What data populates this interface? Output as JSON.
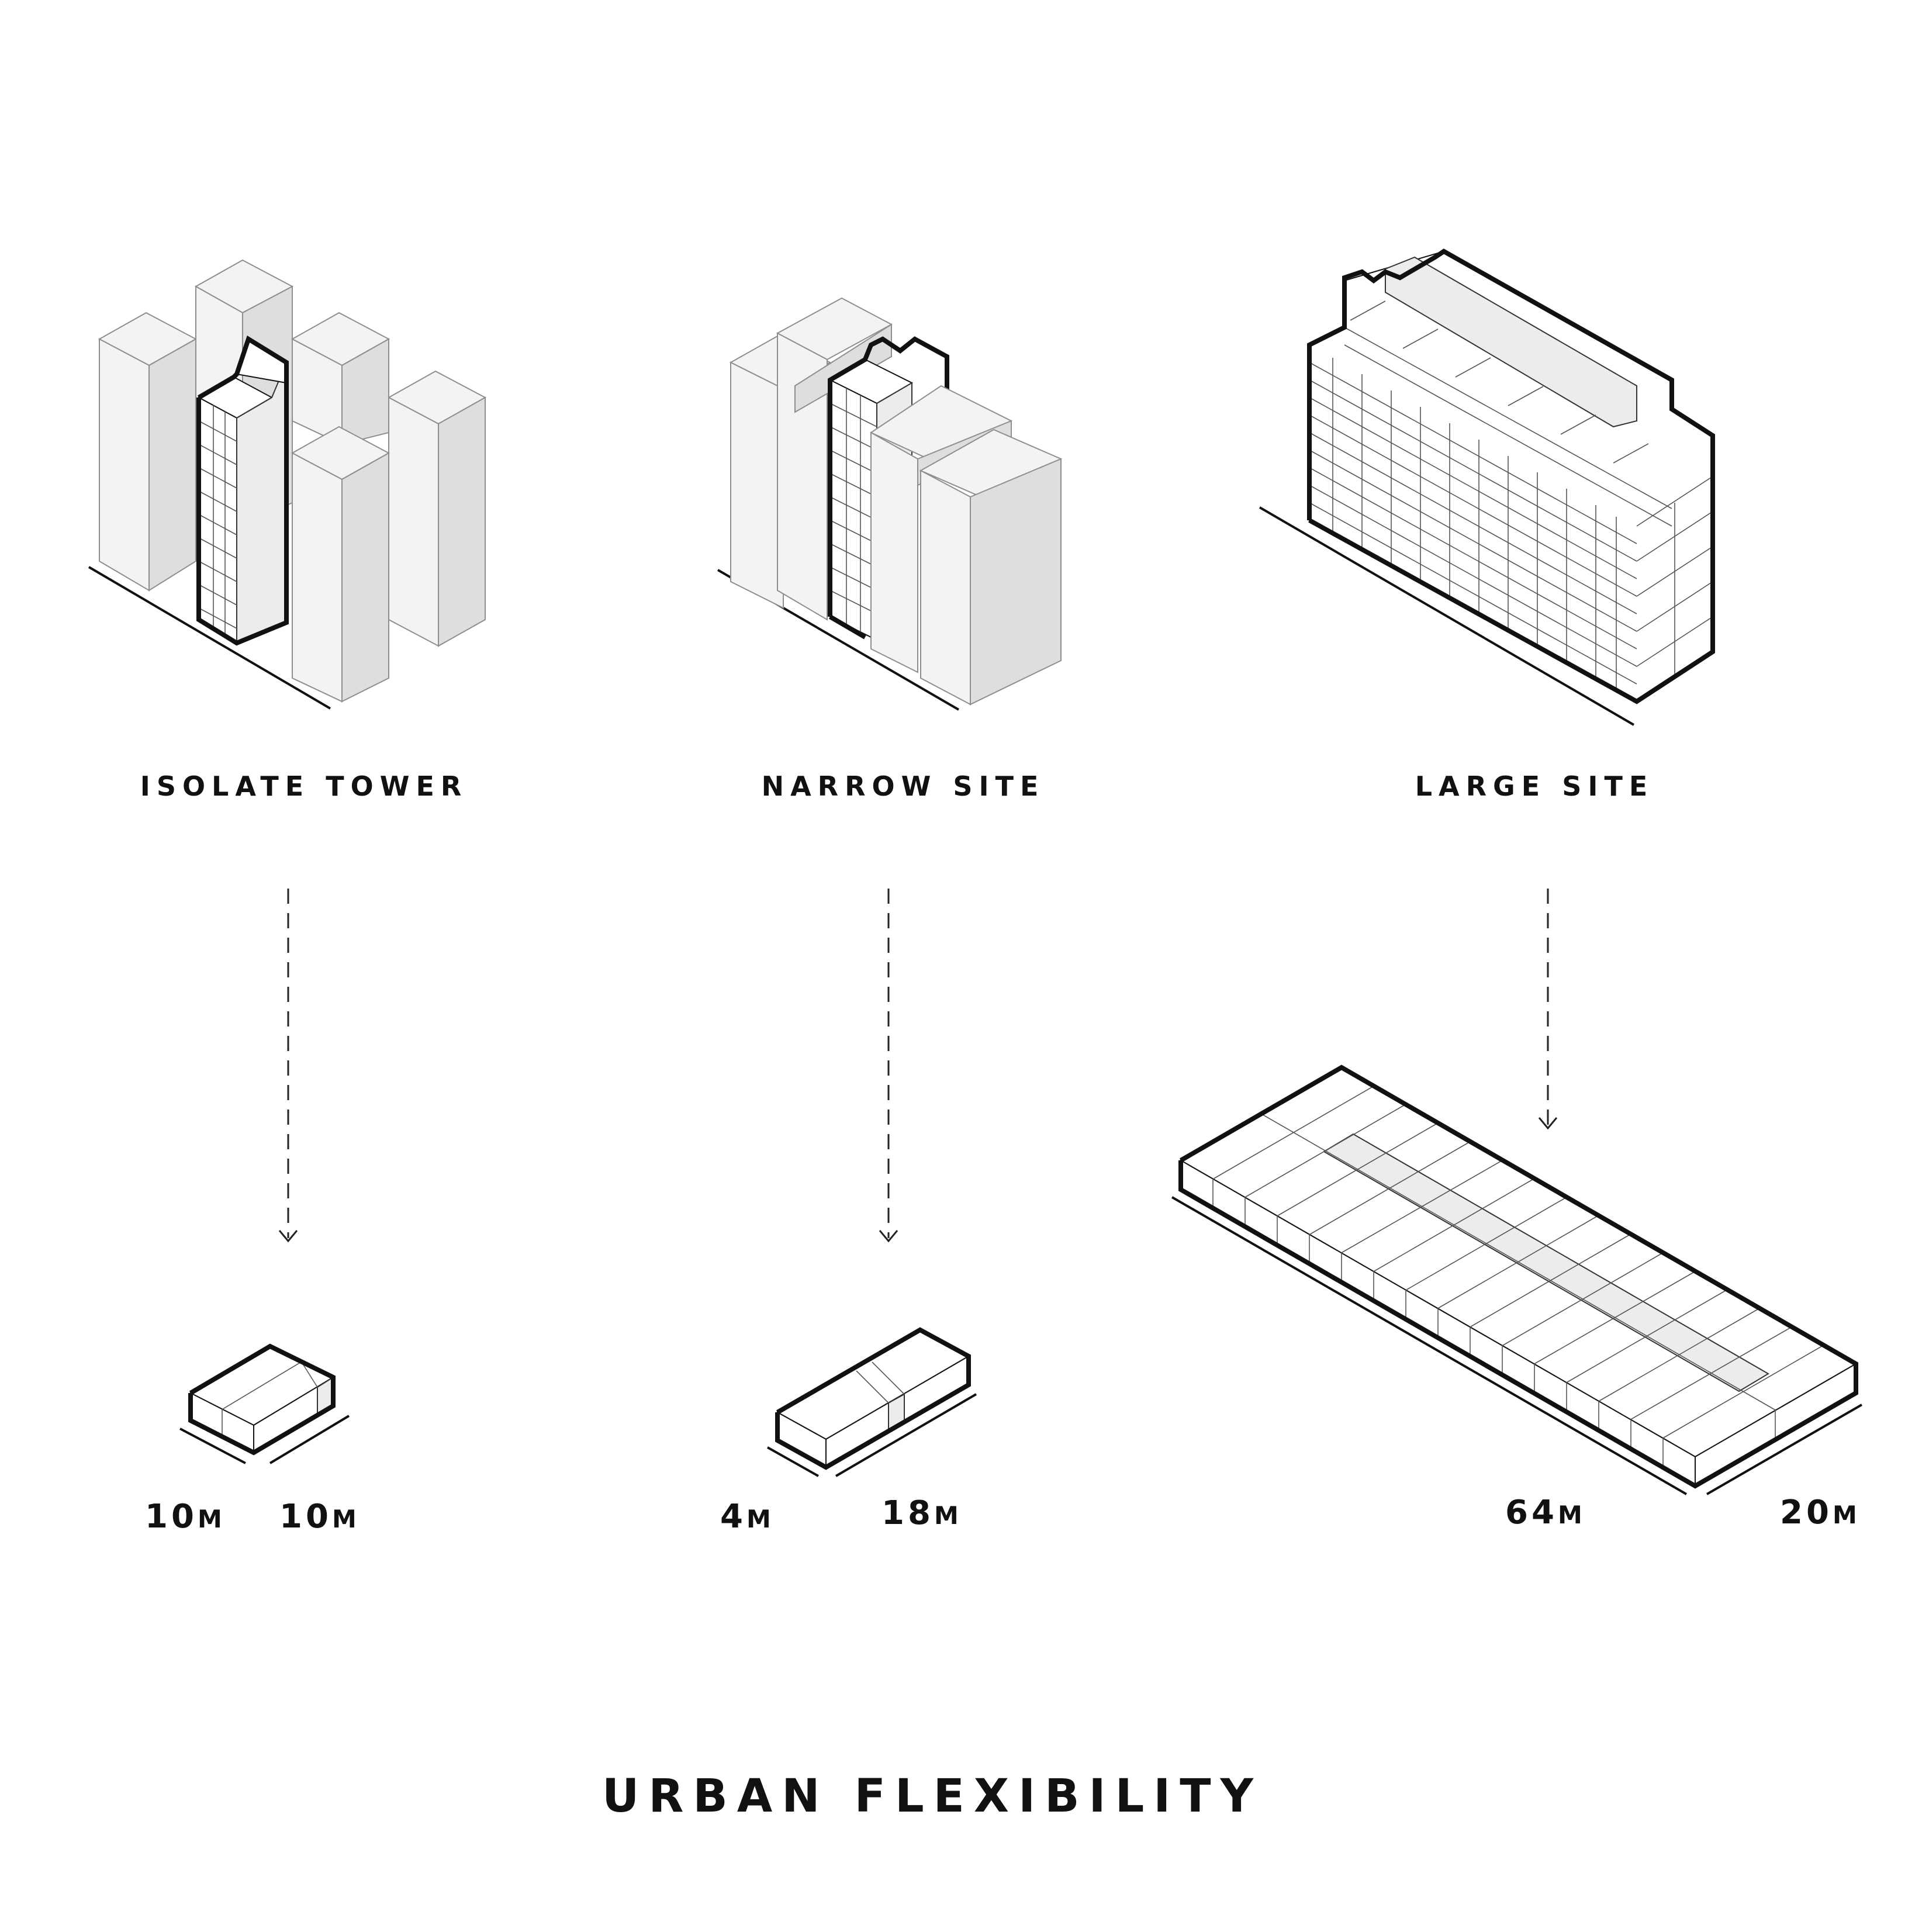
{
  "title": "URBAN FLEXIBILITY",
  "cases": [
    {
      "name": "ISOLATE TOWER",
      "dims": [
        "10",
        "10"
      ]
    },
    {
      "name": "NARROW SITE",
      "dims": [
        "4",
        "18"
      ]
    },
    {
      "name": "LARGE SITE",
      "dims": [
        "64",
        "20"
      ]
    }
  ],
  "unit": "M"
}
